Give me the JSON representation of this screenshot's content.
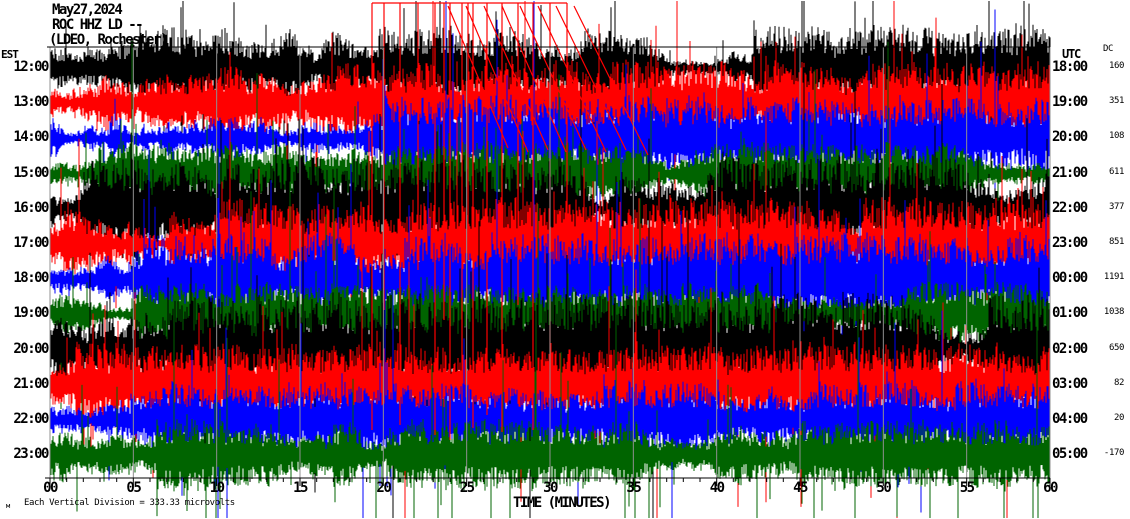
{
  "header": {
    "date": "May27,2024",
    "station_line": "ROC HHZ LD --",
    "location_line": "(LDEO, Rochester)"
  },
  "axes": {
    "left_tz_label": "EST",
    "right_tz_label": "UTC",
    "dc_column_label": "DC",
    "x_title": "TIME (MINUTES)",
    "x_ticks": [
      "00",
      "05",
      "10",
      "15",
      "20",
      "25",
      "30",
      "35",
      "40",
      "45",
      "50",
      "55",
      "60"
    ],
    "footnote": "Each Vertical Division =  333.33 microvolts",
    "footnote_mark": "м"
  },
  "chart_data": {
    "type": "line",
    "subtype": "helicorder-seismogram",
    "title": "ROC HHZ LD -- (LDEO, Rochester) May27,2024",
    "xlabel": "TIME (MINUTES)",
    "x_range_minutes": [
      0,
      60
    ],
    "x_major_tick_minutes": 5,
    "x_minor_tick_minutes": 1,
    "grid": "vertical gray lines every 5 minutes",
    "legend": "none",
    "vertical_division_microvolts": 333.33,
    "trace_color_cycle": [
      "#000000",
      "#FF0000",
      "#0000FF",
      "#006400"
    ],
    "grid_color": "#909090",
    "rows": [
      {
        "est": "12:00",
        "utc": "18:00",
        "dc": "160",
        "color": "#000000",
        "sim": {
          "base": 12,
          "burst": 0.025,
          "spike": 0.018,
          "seed": 101
        }
      },
      {
        "est": "13:00",
        "utc": "19:00",
        "dc": "351",
        "color": "#FF0000",
        "sim": {
          "base": 12,
          "burst": 0.022,
          "spike": 0.015,
          "seed": 202
        }
      },
      {
        "est": "14:00",
        "utc": "20:00",
        "dc": "108",
        "color": "#0000FF",
        "sim": {
          "base": 12,
          "burst": 0.02,
          "spike": 0.012,
          "seed": 303
        }
      },
      {
        "est": "15:00",
        "utc": "21:00",
        "dc": "611",
        "color": "#006400",
        "sim": {
          "base": 9,
          "burst": 0.018,
          "spike": 0.02,
          "seed": 404
        }
      },
      {
        "est": "16:00",
        "utc": "22:00",
        "dc": "377",
        "color": "#000000",
        "sim": {
          "base": 15,
          "burst": 0.03,
          "spike": 0.014,
          "seed": 505
        }
      },
      {
        "est": "17:00",
        "utc": "23:00",
        "dc": "851",
        "color": "#FF0000",
        "sim": {
          "base": 13,
          "burst": 0.025,
          "spike": 0.018,
          "seed": 606
        }
      },
      {
        "est": "18:00",
        "utc": "00:00",
        "dc": "1191",
        "color": "#0000FF",
        "sim": {
          "base": 13,
          "burst": 0.022,
          "spike": 0.014,
          "seed": 707
        }
      },
      {
        "est": "19:00",
        "utc": "01:00",
        "dc": "1038",
        "color": "#006400",
        "sim": {
          "base": 9,
          "burst": 0.018,
          "spike": 0.02,
          "seed": 808
        }
      },
      {
        "est": "20:00",
        "utc": "02:00",
        "dc": "650",
        "color": "#000000",
        "sim": {
          "base": 16,
          "burst": 0.03,
          "spike": 0.012,
          "seed": 909
        }
      },
      {
        "est": "21:00",
        "utc": "03:00",
        "dc": "82",
        "color": "#FF0000",
        "sim": {
          "base": 12,
          "burst": 0.025,
          "spike": 0.02,
          "seed": 1010
        }
      },
      {
        "est": "22:00",
        "utc": "04:00",
        "dc": "20",
        "color": "#0000FF",
        "sim": {
          "base": 11,
          "burst": 0.02,
          "spike": 0.015,
          "seed": 1111
        }
      },
      {
        "est": "23:00",
        "utc": "05:00",
        "dc": "-170",
        "color": "#006400",
        "sim": {
          "base": 10,
          "burst": 0.02,
          "spike": 0.028,
          "seed": 1212
        }
      }
    ],
    "red_clip_event": {
      "description": "large clipped red spikes drawn to image top with flat connector and stair-step decays, approx minutes 19-31",
      "color": "#FF0000",
      "top_y": 3,
      "connector_x": [
        372,
        567
      ],
      "verticals": [
        [
          372,
          430
        ],
        [
          384,
          310
        ],
        [
          400,
          425
        ],
        [
          418,
          270
        ],
        [
          435,
          435
        ],
        [
          444,
          320
        ],
        [
          450,
          440
        ],
        [
          462,
          370
        ],
        [
          468,
          260
        ],
        [
          473,
          428
        ],
        [
          487,
          415
        ],
        [
          502,
          432
        ],
        [
          518,
          305
        ],
        [
          533,
          430
        ],
        [
          550,
          365
        ],
        [
          567,
          255
        ]
      ],
      "diagonals": [
        [
          448,
          6,
          508,
          148
        ],
        [
          466,
          6,
          528,
          152
        ],
        [
          484,
          6,
          548,
          150
        ],
        [
          502,
          6,
          566,
          152
        ],
        [
          520,
          6,
          586,
          150
        ],
        [
          538,
          6,
          606,
          152
        ],
        [
          556,
          6,
          626,
          150
        ],
        [
          574,
          6,
          648,
          155
        ]
      ]
    }
  }
}
